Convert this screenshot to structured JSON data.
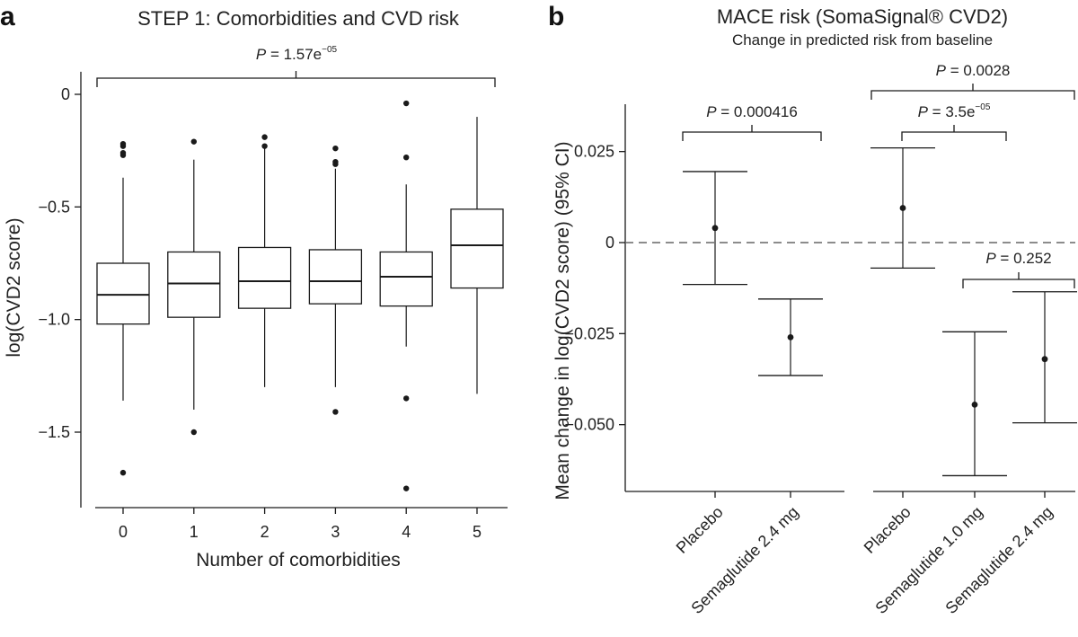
{
  "chart_data": [
    {
      "panel": "a",
      "type": "box",
      "title": "STEP 1: Comorbidities and CVD risk",
      "xlabel": "Number of comorbidities",
      "ylabel": "log(CVD2 score)",
      "ylim": [
        -1.83,
        0.1
      ],
      "yticks": [
        0,
        -0.5,
        -1.0,
        -1.5
      ],
      "ytick_labels": [
        "0",
        "−0.5",
        "−1.0",
        "−1.5"
      ],
      "categories": [
        "0",
        "1",
        "2",
        "3",
        "4",
        "5"
      ],
      "boxes": [
        {
          "category": "0",
          "whisker_low": -1.36,
          "q1": -1.02,
          "median": -0.89,
          "q3": -0.75,
          "whisker_high": -0.37,
          "outliers": [
            -0.22,
            -0.23,
            -0.26,
            -0.27,
            -1.68
          ]
        },
        {
          "category": "1",
          "whisker_low": -1.4,
          "q1": -0.99,
          "median": -0.84,
          "q3": -0.7,
          "whisker_high": -0.29,
          "outliers": [
            -0.21,
            -1.5
          ]
        },
        {
          "category": "2",
          "whisker_low": -1.3,
          "q1": -0.95,
          "median": -0.83,
          "q3": -0.68,
          "whisker_high": -0.24,
          "outliers": [
            -0.19,
            -0.23
          ]
        },
        {
          "category": "3",
          "whisker_low": -1.3,
          "q1": -0.93,
          "median": -0.83,
          "q3": -0.69,
          "whisker_high": -0.33,
          "outliers": [
            -0.24,
            -0.3,
            -0.31,
            -1.41
          ]
        },
        {
          "category": "4",
          "whisker_low": -1.12,
          "q1": -0.94,
          "median": -0.81,
          "q3": -0.7,
          "whisker_high": -0.4,
          "outliers": [
            -0.04,
            -0.28,
            -1.35,
            -1.75
          ]
        },
        {
          "category": "5",
          "whisker_low": -1.33,
          "q1": -0.86,
          "median": -0.67,
          "q3": -0.51,
          "whisker_high": -0.1,
          "outliers": []
        }
      ],
      "annotations": [
        {
          "label": "P",
          "value": " = 1.57e",
          "exponent": "−05",
          "from": "0",
          "to": "5"
        }
      ]
    },
    {
      "panel": "b",
      "type": "errorbar",
      "title": "MACE risk (SomaSignal® CVD2)",
      "subtitle": "Change in predicted risk from baseline",
      "ylabel": "Mean change in log(CVD2 score) (95% CI)",
      "ylim": [
        -0.068,
        0.038
      ],
      "yticks": [
        0.025,
        0,
        -0.025,
        -0.05
      ],
      "ytick_labels": [
        "0.025",
        "0",
        "−0.025",
        "−0.050"
      ],
      "reference_line": 0,
      "groups": [
        {
          "categories": [
            "Placebo",
            "Semaglutide 2.4 mg"
          ],
          "points": [
            {
              "category": "Placebo",
              "mean": 0.004,
              "ci_low": -0.0115,
              "ci_high": 0.0195
            },
            {
              "category": "Semaglutide 2.4 mg",
              "mean": -0.026,
              "ci_low": -0.0365,
              "ci_high": -0.0155
            }
          ]
        },
        {
          "categories": [
            "Placebo",
            "Semaglutide 1.0 mg",
            "Semaglutide 2.4 mg"
          ],
          "points": [
            {
              "category": "Placebo",
              "mean": 0.0095,
              "ci_low": -0.007,
              "ci_high": 0.026
            },
            {
              "category": "Semaglutide 1.0 mg",
              "mean": -0.0445,
              "ci_low": -0.064,
              "ci_high": -0.0245
            },
            {
              "category": "Semaglutide 2.4 mg",
              "mean": -0.032,
              "ci_low": -0.0495,
              "ci_high": -0.0135
            }
          ]
        }
      ],
      "annotations": [
        {
          "label": "P",
          "value": " = 0.000416",
          "exponent": ""
        },
        {
          "label": "P",
          "value": " = 0.0028",
          "exponent": ""
        },
        {
          "label": "P",
          "value": " = 3.5e",
          "exponent": "−05"
        },
        {
          "label": "P",
          "value": " = 0.252",
          "exponent": ""
        }
      ]
    }
  ],
  "panels": [
    {
      "letter": "a"
    },
    {
      "letter": "b"
    }
  ],
  "colors": {
    "ink": "#1a1a1a",
    "axis": "#333333",
    "reference_line": "#666666"
  }
}
